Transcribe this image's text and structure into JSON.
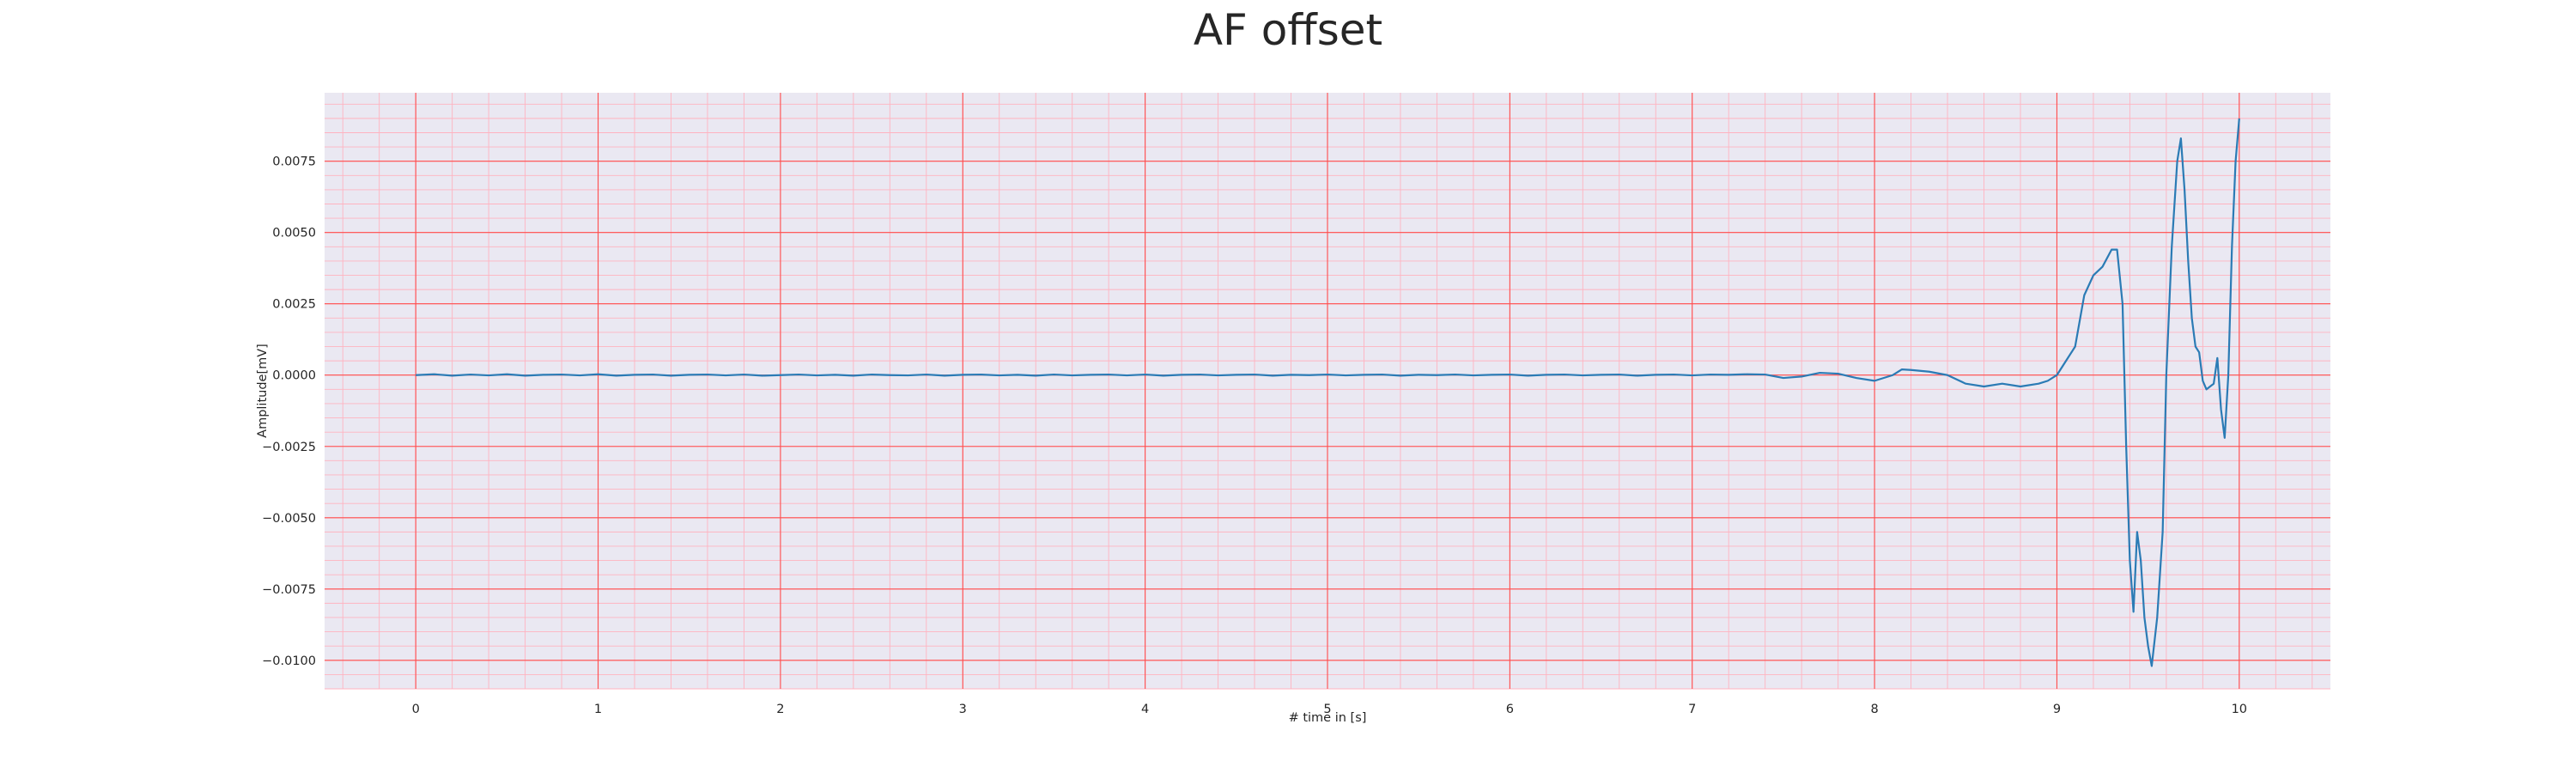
{
  "chart_data": {
    "type": "line",
    "title": "AF offset",
    "xlabel": "# time in [s]",
    "ylabel": "Amplitude[mV]",
    "xlim": [
      -0.5,
      10.5
    ],
    "ylim": [
      -0.011,
      0.0099
    ],
    "x_ticks": [
      0,
      1,
      2,
      3,
      4,
      5,
      6,
      7,
      8,
      9,
      10
    ],
    "x_tick_labels": [
      "0",
      "1",
      "2",
      "3",
      "4",
      "5",
      "6",
      "7",
      "8",
      "9",
      "10"
    ],
    "y_ticks": [
      0.0075,
      0.005,
      0.0025,
      0.0,
      -0.0025,
      -0.005,
      -0.0075,
      -0.01
    ],
    "y_tick_labels": [
      "0.0075",
      "0.0050",
      "0.0025",
      "0.0000",
      "−0.0025",
      "−0.0050",
      "−0.0075",
      "−0.0100"
    ],
    "grid": true,
    "minor_grid": true,
    "background_color": "#eae8f2",
    "major_grid_color": "#ff4d4d",
    "minor_grid_color": "#ffb3c0",
    "line_color": "#2b7bb5",
    "series": [
      {
        "x": [
          0.0,
          0.1,
          0.2,
          0.3,
          0.4,
          0.5,
          0.6,
          0.7,
          0.8,
          0.9,
          1.0,
          1.1,
          1.2,
          1.3,
          1.4,
          1.5,
          1.6,
          1.7,
          1.8,
          1.9,
          2.0,
          2.1,
          2.2,
          2.3,
          2.4,
          2.5,
          2.6,
          2.7,
          2.8,
          2.9,
          3.0,
          3.1,
          3.2,
          3.3,
          3.4,
          3.5,
          3.6,
          3.7,
          3.8,
          3.9,
          4.0,
          4.1,
          4.2,
          4.3,
          4.4,
          4.5,
          4.6,
          4.7,
          4.8,
          4.9,
          5.0,
          5.1,
          5.2,
          5.3,
          5.4,
          5.5,
          5.6,
          5.7,
          5.8,
          5.9,
          6.0,
          6.1,
          6.2,
          6.3,
          6.4,
          6.5,
          6.6,
          6.7,
          6.8,
          6.9,
          7.0,
          7.1,
          7.2,
          7.3,
          7.4,
          7.5,
          7.6,
          7.7,
          7.8,
          7.9,
          8.0,
          8.1,
          8.15,
          8.2,
          8.3,
          8.4,
          8.5,
          8.6,
          8.7,
          8.8,
          8.9,
          8.95,
          9.0,
          9.05,
          9.1,
          9.15,
          9.2,
          9.25,
          9.3,
          9.33,
          9.36,
          9.38,
          9.4,
          9.42,
          9.44,
          9.46,
          9.48,
          9.5,
          9.52,
          9.55,
          9.58,
          9.6,
          9.63,
          9.66,
          9.68,
          9.7,
          9.72,
          9.74,
          9.76,
          9.78,
          9.8,
          9.82,
          9.84,
          9.86,
          9.88,
          9.9,
          9.92,
          9.94,
          9.96,
          9.98,
          10.0
        ],
        "y": [
          0.0,
          3e-05,
          -2e-05,
          2e-05,
          -1e-05,
          3e-05,
          -2e-05,
          1e-05,
          2e-05,
          -1e-05,
          3e-05,
          -2e-05,
          1e-05,
          2e-05,
          -2e-05,
          1e-05,
          2e-05,
          -1e-05,
          2e-05,
          -2e-05,
          0.0,
          2e-05,
          -1e-05,
          1e-05,
          -2e-05,
          2e-05,
          0.0,
          -1e-05,
          2e-05,
          -2e-05,
          1e-05,
          2e-05,
          -1e-05,
          1e-05,
          -2e-05,
          2e-05,
          -1e-05,
          1e-05,
          2e-05,
          -1e-05,
          2e-05,
          -2e-05,
          1e-05,
          2e-05,
          -1e-05,
          1e-05,
          2e-05,
          -2e-05,
          1e-05,
          0.0,
          2e-05,
          -1e-05,
          1e-05,
          2e-05,
          -2e-05,
          1e-05,
          0.0,
          2e-05,
          -1e-05,
          1e-05,
          2e-05,
          -2e-05,
          1e-05,
          2e-05,
          -1e-05,
          1e-05,
          2e-05,
          -2e-05,
          1e-05,
          2e-05,
          -1e-05,
          2e-05,
          1e-05,
          3e-05,
          2e-05,
          -0.0001,
          -5e-05,
          8e-05,
          5e-05,
          -0.0001,
          -0.0002,
          0.0,
          0.0002,
          0.00018,
          0.00012,
          0.0,
          -0.0003,
          -0.0004,
          -0.0003,
          -0.0004,
          -0.0003,
          -0.0002,
          0.0,
          0.0005,
          0.001,
          0.0028,
          0.0035,
          0.0038,
          0.0044,
          0.0044,
          0.0025,
          -0.0025,
          -0.0065,
          -0.0083,
          -0.0055,
          -0.0065,
          -0.0085,
          -0.0095,
          -0.0102,
          -0.0085,
          -0.0055,
          0.0,
          0.0045,
          0.0075,
          0.0083,
          0.0065,
          0.004,
          0.002,
          0.001,
          0.0008,
          -0.0002,
          -0.0005,
          -0.0004,
          -0.0003,
          0.0006,
          -0.0012,
          -0.0022,
          0.0,
          0.0045,
          0.0075,
          0.009
        ]
      }
    ]
  }
}
